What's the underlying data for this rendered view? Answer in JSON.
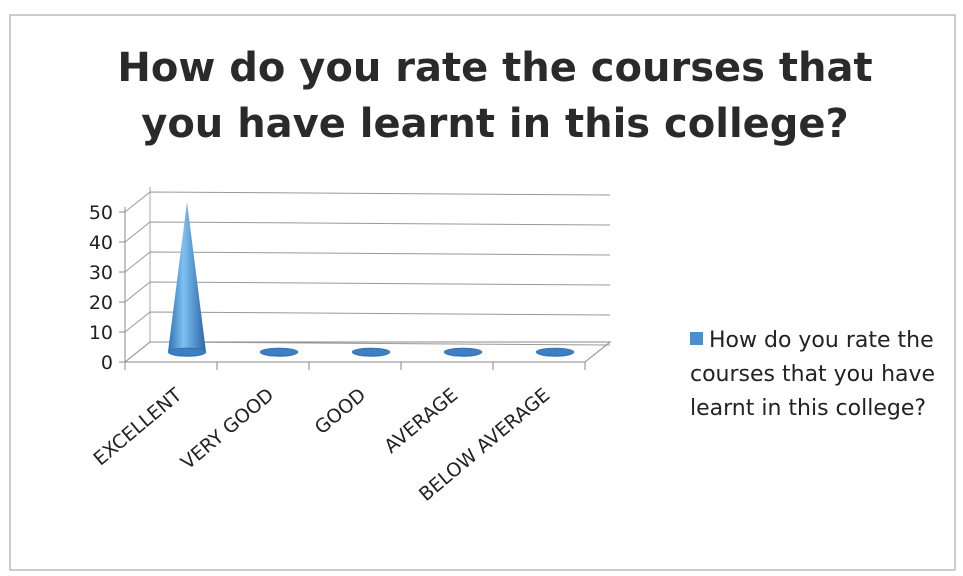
{
  "chart_data": {
    "type": "cone",
    "title": "How do you rate the courses that you have learnt in this college?",
    "categories": [
      "EXCELLENT",
      "VERY GOOD",
      "GOOD",
      "AVERAGE",
      "BELOW AVERAGE"
    ],
    "series": [
      {
        "name": "How do you rate the courses that you have learnt in this college?",
        "color": "#4a90d0",
        "values": [
          50,
          0,
          0,
          0,
          0
        ]
      }
    ],
    "ylim": [
      0,
      50
    ],
    "yticks": [
      0,
      10,
      20,
      30,
      40,
      50
    ],
    "grid": true,
    "legend": "right"
  }
}
